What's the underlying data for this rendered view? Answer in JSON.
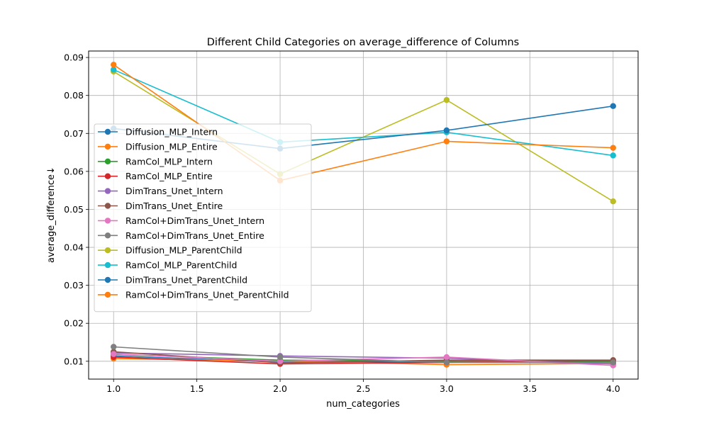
{
  "chart_data": {
    "type": "line",
    "title": "Different Child Categories on average_difference of Columns",
    "xlabel": "num_categories",
    "ylabel": "average_difference↓",
    "xlim": [
      0.85,
      4.15
    ],
    "ylim": [
      0.0053,
      0.0917
    ],
    "xticks": [
      1.0,
      1.5,
      2.0,
      2.5,
      3.0,
      3.5,
      4.0
    ],
    "xtick_labels": [
      "1.0",
      "1.5",
      "2.0",
      "2.5",
      "3.0",
      "3.5",
      "4.0"
    ],
    "yticks": [
      0.01,
      0.02,
      0.03,
      0.04,
      0.05,
      0.06,
      0.07,
      0.08,
      0.09
    ],
    "ytick_labels": [
      "0.01",
      "0.02",
      "0.03",
      "0.04",
      "0.05",
      "0.06",
      "0.07",
      "0.08",
      "0.09"
    ],
    "grid": true,
    "legend_position": "center-left",
    "x": [
      1.0,
      2.0,
      3.0,
      4.0
    ],
    "series": [
      {
        "name": "Diffusion_MLP_Intern",
        "color": "#1f77b4",
        "values": [
          0.0114,
          0.0098,
          0.0097,
          0.0101
        ]
      },
      {
        "name": "Diffusion_MLP_Entire",
        "color": "#ff7f0e",
        "values": [
          0.0107,
          0.0101,
          0.0091,
          0.0094
        ]
      },
      {
        "name": "RamCol_MLP_Intern",
        "color": "#2ca02c",
        "values": [
          0.0118,
          0.0103,
          0.01,
          0.0099
        ]
      },
      {
        "name": "RamCol_MLP_Entire",
        "color": "#d62728",
        "values": [
          0.0111,
          0.0093,
          0.0097,
          0.0102
        ]
      },
      {
        "name": "DimTrans_Unet_Intern",
        "color": "#9467bd",
        "values": [
          0.0122,
          0.0114,
          0.0108,
          0.0093
        ]
      },
      {
        "name": "DimTrans_Unet_Entire",
        "color": "#8c564b",
        "values": [
          0.0125,
          0.0096,
          0.0103,
          0.0103
        ]
      },
      {
        "name": "RamCol+DimTrans_Unet_Intern",
        "color": "#e377c2",
        "values": [
          0.0119,
          0.01,
          0.0111,
          0.0089
        ]
      },
      {
        "name": "RamCol+DimTrans_Unet_Entire",
        "color": "#7f7f7f",
        "values": [
          0.0138,
          0.0111,
          0.0097,
          0.0097
        ]
      },
      {
        "name": "Diffusion_MLP_ParentChild",
        "color": "#bcbd22",
        "values": [
          0.0863,
          0.0593,
          0.0788,
          0.0521
        ]
      },
      {
        "name": "RamCol_MLP_ParentChild",
        "color": "#17becf",
        "values": [
          0.0868,
          0.0677,
          0.0703,
          0.0642
        ]
      },
      {
        "name": "DimTrans_Unet_ParentChild",
        "color": "#1f77b4",
        "values": [
          0.0713,
          0.066,
          0.0708,
          0.0772
        ]
      },
      {
        "name": "RamCol+DimTrans_Unet_ParentChild",
        "color": "#ff7f0e",
        "values": [
          0.0881,
          0.0576,
          0.0679,
          0.0662
        ]
      }
    ]
  }
}
